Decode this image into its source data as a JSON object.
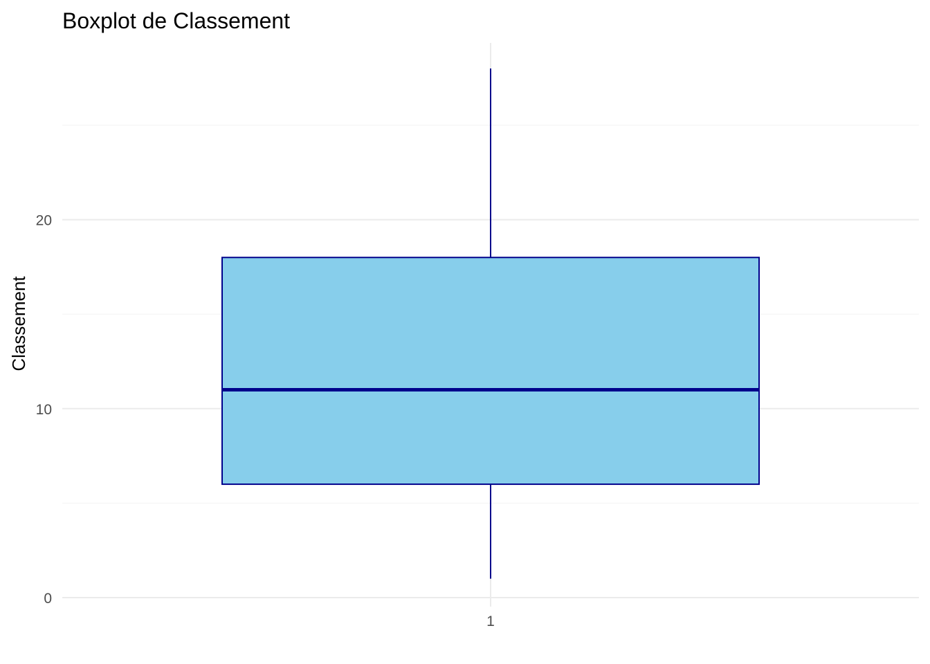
{
  "chart_data": {
    "type": "boxplot",
    "title": "Boxplot de Classement",
    "xlabel": "",
    "ylabel": "Classement",
    "categories": [
      "1"
    ],
    "boxes": [
      {
        "category": "1",
        "min": 1,
        "q1": 6,
        "median": 11,
        "q3": 18,
        "max": 28
      }
    ],
    "ylim": [
      0,
      28.5
    ],
    "yticks": [
      0,
      10,
      20
    ],
    "grid": true,
    "legend": "none",
    "colors": {
      "box_fill": "#87CEEB",
      "box_stroke": "#00008B",
      "grid_major": "#ebebeb",
      "grid_minor": "#f3f3f3"
    }
  }
}
